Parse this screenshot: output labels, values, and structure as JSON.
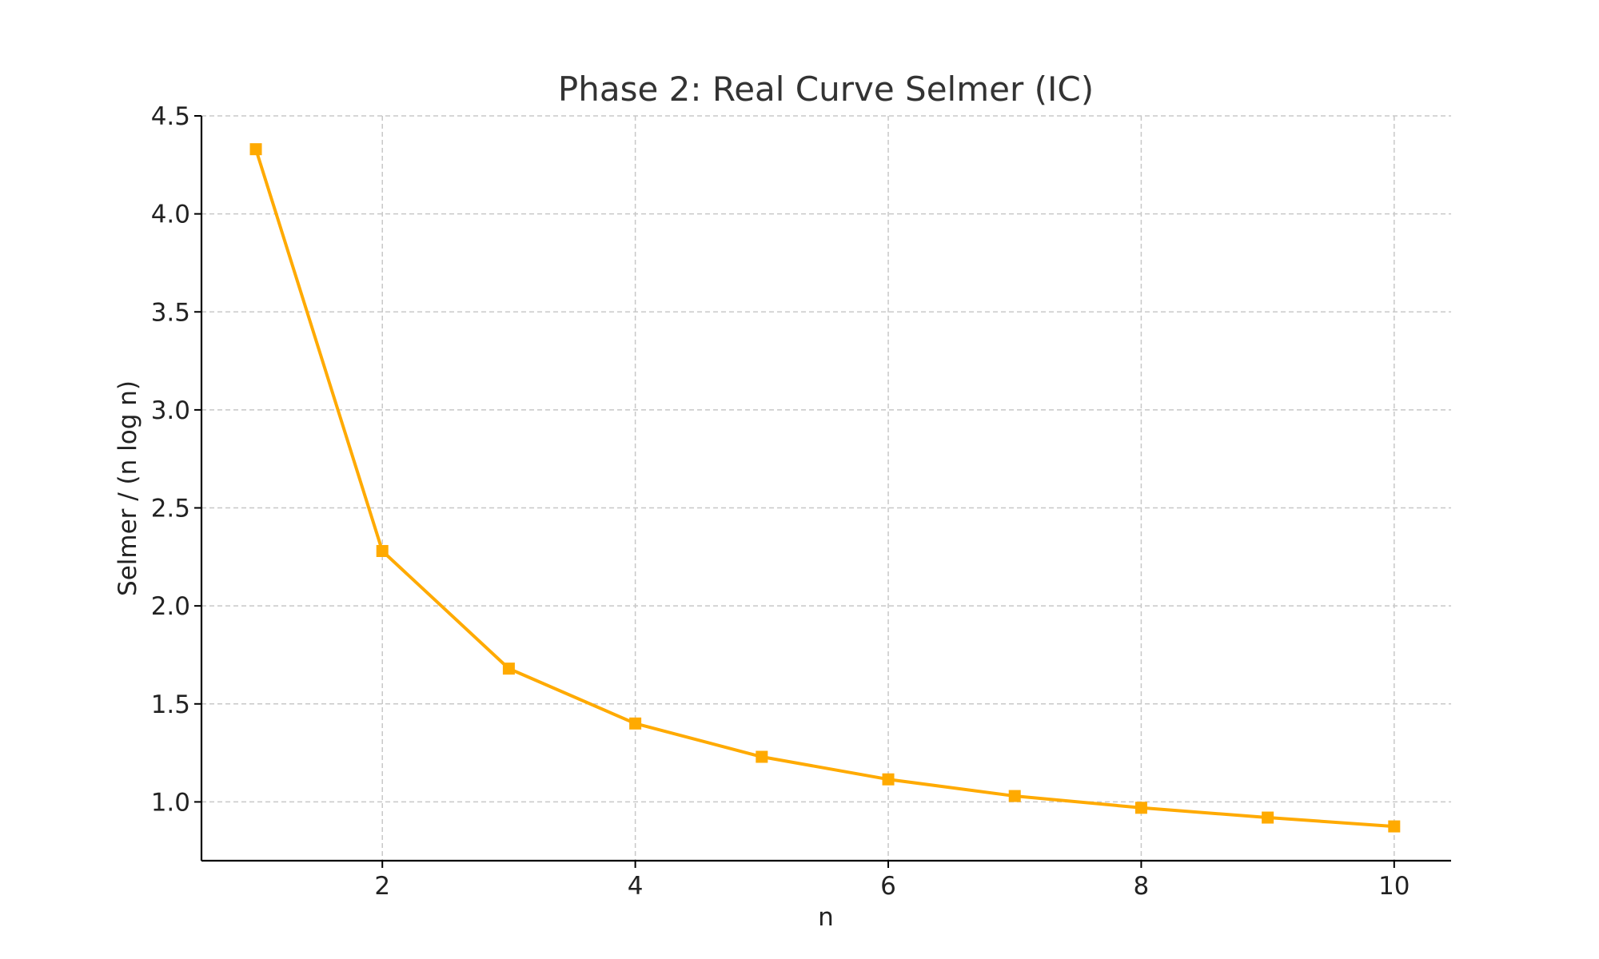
{
  "chart_data": {
    "type": "line",
    "title": "Phase 2: Real Curve Selmer (IC)",
    "xlabel": "n",
    "ylabel": "Selmer / (n log n)",
    "x": [
      1,
      2,
      3,
      4,
      5,
      6,
      7,
      8,
      9,
      10
    ],
    "series": [
      {
        "values": [
          4.33,
          2.28,
          1.68,
          1.4,
          1.23,
          1.115,
          1.03,
          0.97,
          0.92,
          0.875
        ],
        "color": "#FFAA00",
        "marker": "square"
      }
    ],
    "xlim": [
      0.57,
      10.45
    ],
    "ylim": [
      0.7,
      4.5
    ],
    "xticks": [
      "2",
      "4",
      "6",
      "8",
      "10"
    ],
    "xtick_values": [
      2,
      4,
      6,
      8,
      10
    ],
    "yticks": [
      "1.0",
      "1.5",
      "2.0",
      "2.5",
      "3.0",
      "3.5",
      "4.0",
      "4.5"
    ],
    "ytick_values": [
      1.0,
      1.5,
      2.0,
      2.5,
      3.0,
      3.5,
      4.0,
      4.5
    ],
    "grid": true,
    "legend": "none"
  }
}
